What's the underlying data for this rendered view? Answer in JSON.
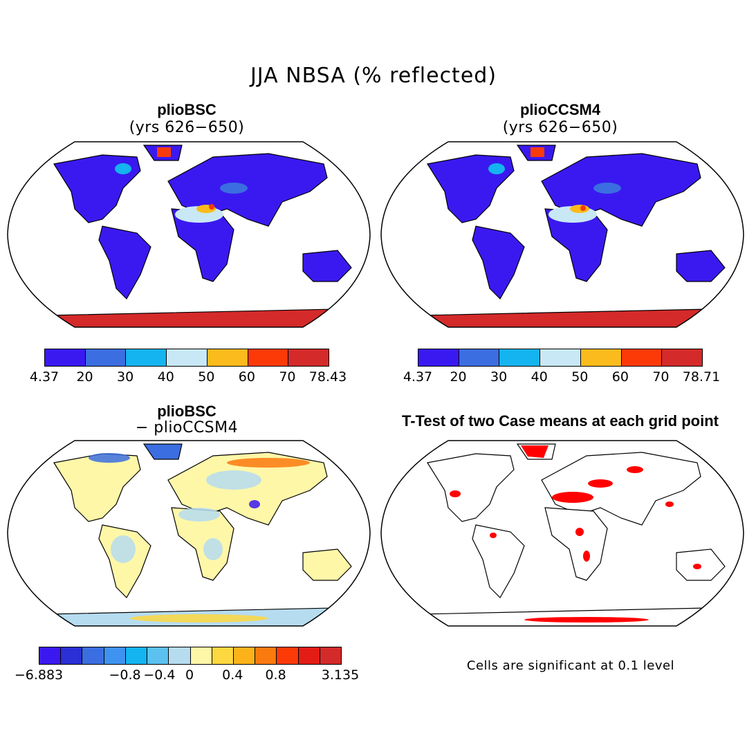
{
  "title": "JJA NBSA (% reflected)",
  "panels": [
    {
      "title": "plioBSC",
      "subtitle": "(yrs 626−650)",
      "colorbar": {
        "colors": [
          "#3a19f0",
          "#3b6ee0",
          "#13b4ef",
          "#c8e8f5",
          "#fbbb1c",
          "#fb3a08",
          "#d42a2a"
        ],
        "ticks": [
          "4.37",
          "20",
          "30",
          "40",
          "50",
          "60",
          "70",
          "78.43"
        ]
      }
    },
    {
      "title": "plioCCSM4",
      "subtitle": "(yrs 626−650)",
      "colorbar": {
        "colors": [
          "#3a19f0",
          "#3b6ee0",
          "#13b4ef",
          "#c8e8f5",
          "#fbbb1c",
          "#fb3a08",
          "#d42a2a"
        ],
        "ticks": [
          "4.37",
          "20",
          "30",
          "40",
          "50",
          "60",
          "70",
          "78.71"
        ]
      }
    },
    {
      "title": "plioBSC",
      "subtitle": "− plioCCSM4",
      "colorbar": {
        "colors": [
          "#3a19f0",
          "#2a2fd6",
          "#3b6ee0",
          "#3f93f0",
          "#13b4ef",
          "#5cc1f0",
          "#b6dcf0",
          "#fff7a8",
          "#fed840",
          "#fbb319",
          "#fb7a0f",
          "#fb3a08",
          "#e31c16",
          "#d42a2a"
        ],
        "ticks": [
          "−6.883",
          "−0.8",
          "−0.4",
          "0",
          "0.4",
          "0.8",
          "3.135"
        ]
      }
    },
    {
      "title": "T-Test of two Case means at each grid point",
      "note": "Cells are significant at 0.1 level"
    }
  ]
}
